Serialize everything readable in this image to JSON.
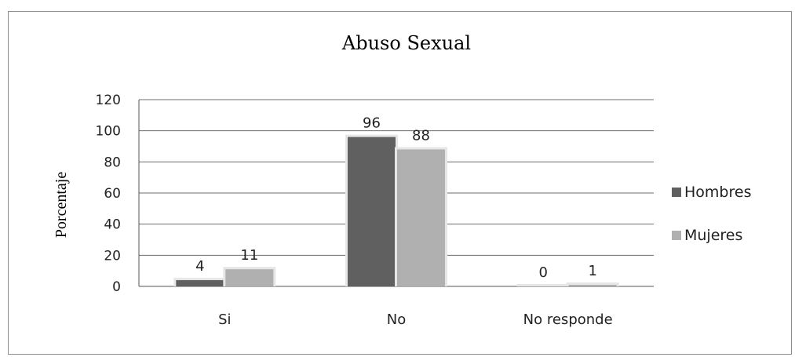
{
  "chart_data": {
    "type": "bar",
    "title": "Abuso Sexual",
    "ylabel": "Porcentaje",
    "xlabel": "",
    "categories": [
      "Si",
      "No",
      "No responde"
    ],
    "series": [
      {
        "name": "Hombres",
        "values": [
          4,
          96,
          0
        ],
        "color": "#606060"
      },
      {
        "name": "Mujeres",
        "values": [
          11,
          88,
          1
        ],
        "color": "#b0b0b0"
      }
    ],
    "ylim": [
      0,
      120
    ],
    "yticks": [
      0,
      20,
      40,
      60,
      80,
      100,
      120
    ],
    "grid": true,
    "legend_position": "right",
    "data_labels": true
  }
}
